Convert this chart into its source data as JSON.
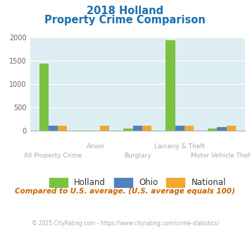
{
  "title_line1": "2018 Holland",
  "title_line2": "Property Crime Comparison",
  "categories": [
    "All Property Crime",
    "Arson",
    "Burglary",
    "Larceny & Theft",
    "Motor Vehicle Theft"
  ],
  "holland": [
    1440,
    0,
    50,
    1930,
    50
  ],
  "ohio": [
    100,
    0,
    100,
    100,
    75
  ],
  "national": [
    100,
    100,
    100,
    100,
    100
  ],
  "bar_colors": {
    "holland": "#7bc143",
    "ohio": "#4f81bd",
    "national": "#f0a830"
  },
  "ylim": [
    0,
    2000
  ],
  "yticks": [
    0,
    500,
    1000,
    1500,
    2000
  ],
  "plot_bg": "#ddeef2",
  "title_color": "#1a6faf",
  "label_color": "#aaaaaa",
  "footer_text": "Compared to U.S. average. (U.S. average equals 100)",
  "footer_color": "#cc6600",
  "credit_text": "© 2025 CityRating.com - https://www.cityrating.com/crime-statistics/",
  "credit_color": "#aaaaaa",
  "legend_labels": [
    "Holland",
    "Ohio",
    "National"
  ],
  "bar_width": 0.22,
  "row1_cats": [
    "Arson",
    "Larceny & Theft"
  ],
  "row2_cats": [
    "All Property Crime",
    "Burglary",
    "Motor Vehicle Theft"
  ]
}
